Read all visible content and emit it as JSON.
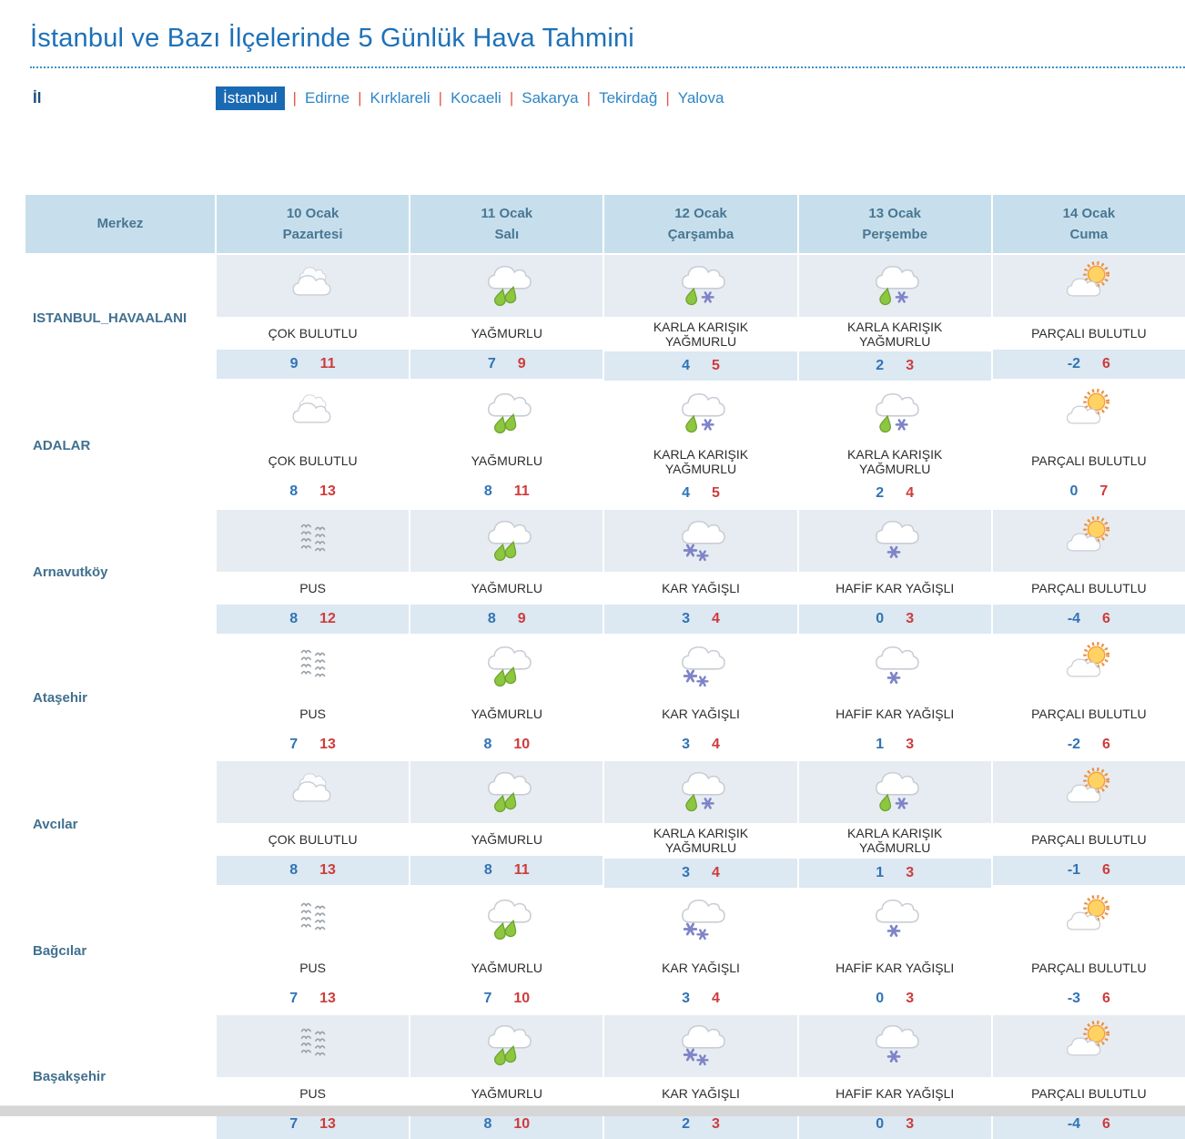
{
  "page": {
    "title": "İstanbul ve Bazı İlçelerinde 5 Günlük Hava Tahmini",
    "province_label": "İl",
    "separator": "|",
    "provinces": [
      {
        "name": "İstanbul",
        "selected": true
      },
      {
        "name": "Edirne",
        "selected": false
      },
      {
        "name": "Kırklareli",
        "selected": false
      },
      {
        "name": "Kocaeli",
        "selected": false
      },
      {
        "name": "Sakarya",
        "selected": false
      },
      {
        "name": "Tekirdağ",
        "selected": false
      },
      {
        "name": "Yalova",
        "selected": false
      }
    ]
  },
  "colors": {
    "title_blue": "#1d71b8",
    "selected_province_bg": "#1a6ab3",
    "separator_orange": "#e2574c",
    "header_bg": "#c7dfec",
    "header_text": "#4a7693",
    "temp_min_blue": "#2f74b5",
    "temp_max_red": "#cf3b3b"
  },
  "table": {
    "merkez_header": "Merkez",
    "day_headers": [
      {
        "date": "10 Ocak",
        "day": "Pazartesi"
      },
      {
        "date": "11 Ocak",
        "day": "Salı"
      },
      {
        "date": "12 Ocak",
        "day": "Çarşamba"
      },
      {
        "date": "13 Ocak",
        "day": "Perşembe"
      },
      {
        "date": "14 Ocak",
        "day": "Cuma"
      }
    ],
    "rows": [
      {
        "name": "ISTANBUL_HAVAALANI",
        "cells": [
          {
            "icon": "cloudy-icon",
            "desc": "ÇOK BULUTLU",
            "min": "9",
            "max": "11"
          },
          {
            "icon": "rain-icon",
            "desc": "YAĞMURLU",
            "min": "7",
            "max": "9"
          },
          {
            "icon": "sleet-icon",
            "desc": "KARLA KARIŞIK YAĞMURLU",
            "min": "4",
            "max": "5"
          },
          {
            "icon": "sleet-icon",
            "desc": "KARLA KARIŞIK YAĞMURLU",
            "min": "2",
            "max": "3"
          },
          {
            "icon": "partly-cloudy-icon",
            "desc": "PARÇALI BULUTLU",
            "min": "-2",
            "max": "6"
          }
        ]
      },
      {
        "name": "ADALAR",
        "cells": [
          {
            "icon": "cloudy-icon",
            "desc": "ÇOK BULUTLU",
            "min": "8",
            "max": "13"
          },
          {
            "icon": "rain-icon",
            "desc": "YAĞMURLU",
            "min": "8",
            "max": "11"
          },
          {
            "icon": "sleet-icon",
            "desc": "KARLA KARIŞIK YAĞMURLU",
            "min": "4",
            "max": "5"
          },
          {
            "icon": "sleet-icon",
            "desc": "KARLA KARIŞIK YAĞMURLU",
            "min": "2",
            "max": "4"
          },
          {
            "icon": "partly-cloudy-icon",
            "desc": "PARÇALI BULUTLU",
            "min": "0",
            "max": "7"
          }
        ]
      },
      {
        "name": "Arnavutköy",
        "cells": [
          {
            "icon": "haze-icon",
            "desc": "PUS",
            "min": "8",
            "max": "12"
          },
          {
            "icon": "rain-icon",
            "desc": "YAĞMURLU",
            "min": "8",
            "max": "9"
          },
          {
            "icon": "snow-icon",
            "desc": "KAR YAĞIŞLI",
            "min": "3",
            "max": "4"
          },
          {
            "icon": "light-snow-icon",
            "desc": "HAFİF KAR YAĞIŞLI",
            "min": "0",
            "max": "3"
          },
          {
            "icon": "partly-cloudy-icon",
            "desc": "PARÇALI BULUTLU",
            "min": "-4",
            "max": "6"
          }
        ]
      },
      {
        "name": "Ataşehir",
        "cells": [
          {
            "icon": "haze-icon",
            "desc": "PUS",
            "min": "7",
            "max": "13"
          },
          {
            "icon": "rain-icon",
            "desc": "YAĞMURLU",
            "min": "8",
            "max": "10"
          },
          {
            "icon": "snow-icon",
            "desc": "KAR YAĞIŞLI",
            "min": "3",
            "max": "4"
          },
          {
            "icon": "light-snow-icon",
            "desc": "HAFİF KAR YAĞIŞLI",
            "min": "1",
            "max": "3"
          },
          {
            "icon": "partly-cloudy-icon",
            "desc": "PARÇALI BULUTLU",
            "min": "-2",
            "max": "6"
          }
        ]
      },
      {
        "name": "Avcılar",
        "cells": [
          {
            "icon": "cloudy-icon",
            "desc": "ÇOK BULUTLU",
            "min": "8",
            "max": "13"
          },
          {
            "icon": "rain-icon",
            "desc": "YAĞMURLU",
            "min": "8",
            "max": "11"
          },
          {
            "icon": "sleet-icon",
            "desc": "KARLA KARIŞIK YAĞMURLU",
            "min": "3",
            "max": "4"
          },
          {
            "icon": "sleet-icon",
            "desc": "KARLA KARIŞIK YAĞMURLU",
            "min": "1",
            "max": "3"
          },
          {
            "icon": "partly-cloudy-icon",
            "desc": "PARÇALI BULUTLU",
            "min": "-1",
            "max": "6"
          }
        ]
      },
      {
        "name": "Bağcılar",
        "cells": [
          {
            "icon": "haze-icon",
            "desc": "PUS",
            "min": "7",
            "max": "13"
          },
          {
            "icon": "rain-icon",
            "desc": "YAĞMURLU",
            "min": "7",
            "max": "10"
          },
          {
            "icon": "snow-icon",
            "desc": "KAR YAĞIŞLI",
            "min": "3",
            "max": "4"
          },
          {
            "icon": "light-snow-icon",
            "desc": "HAFİF KAR YAĞIŞLI",
            "min": "0",
            "max": "3"
          },
          {
            "icon": "partly-cloudy-icon",
            "desc": "PARÇALI BULUTLU",
            "min": "-3",
            "max": "6"
          }
        ]
      },
      {
        "name": "Başakşehir",
        "cells": [
          {
            "icon": "haze-icon",
            "desc": "PUS",
            "min": "7",
            "max": "13"
          },
          {
            "icon": "rain-icon",
            "desc": "YAĞMURLU",
            "min": "8",
            "max": "10"
          },
          {
            "icon": "snow-icon",
            "desc": "KAR YAĞIŞLI",
            "min": "2",
            "max": "3"
          },
          {
            "icon": "light-snow-icon",
            "desc": "HAFİF KAR YAĞIŞLI",
            "min": "0",
            "max": "3"
          },
          {
            "icon": "partly-cloudy-icon",
            "desc": "PARÇALI BULUTLU",
            "min": "-4",
            "max": "6"
          }
        ]
      }
    ]
  }
}
